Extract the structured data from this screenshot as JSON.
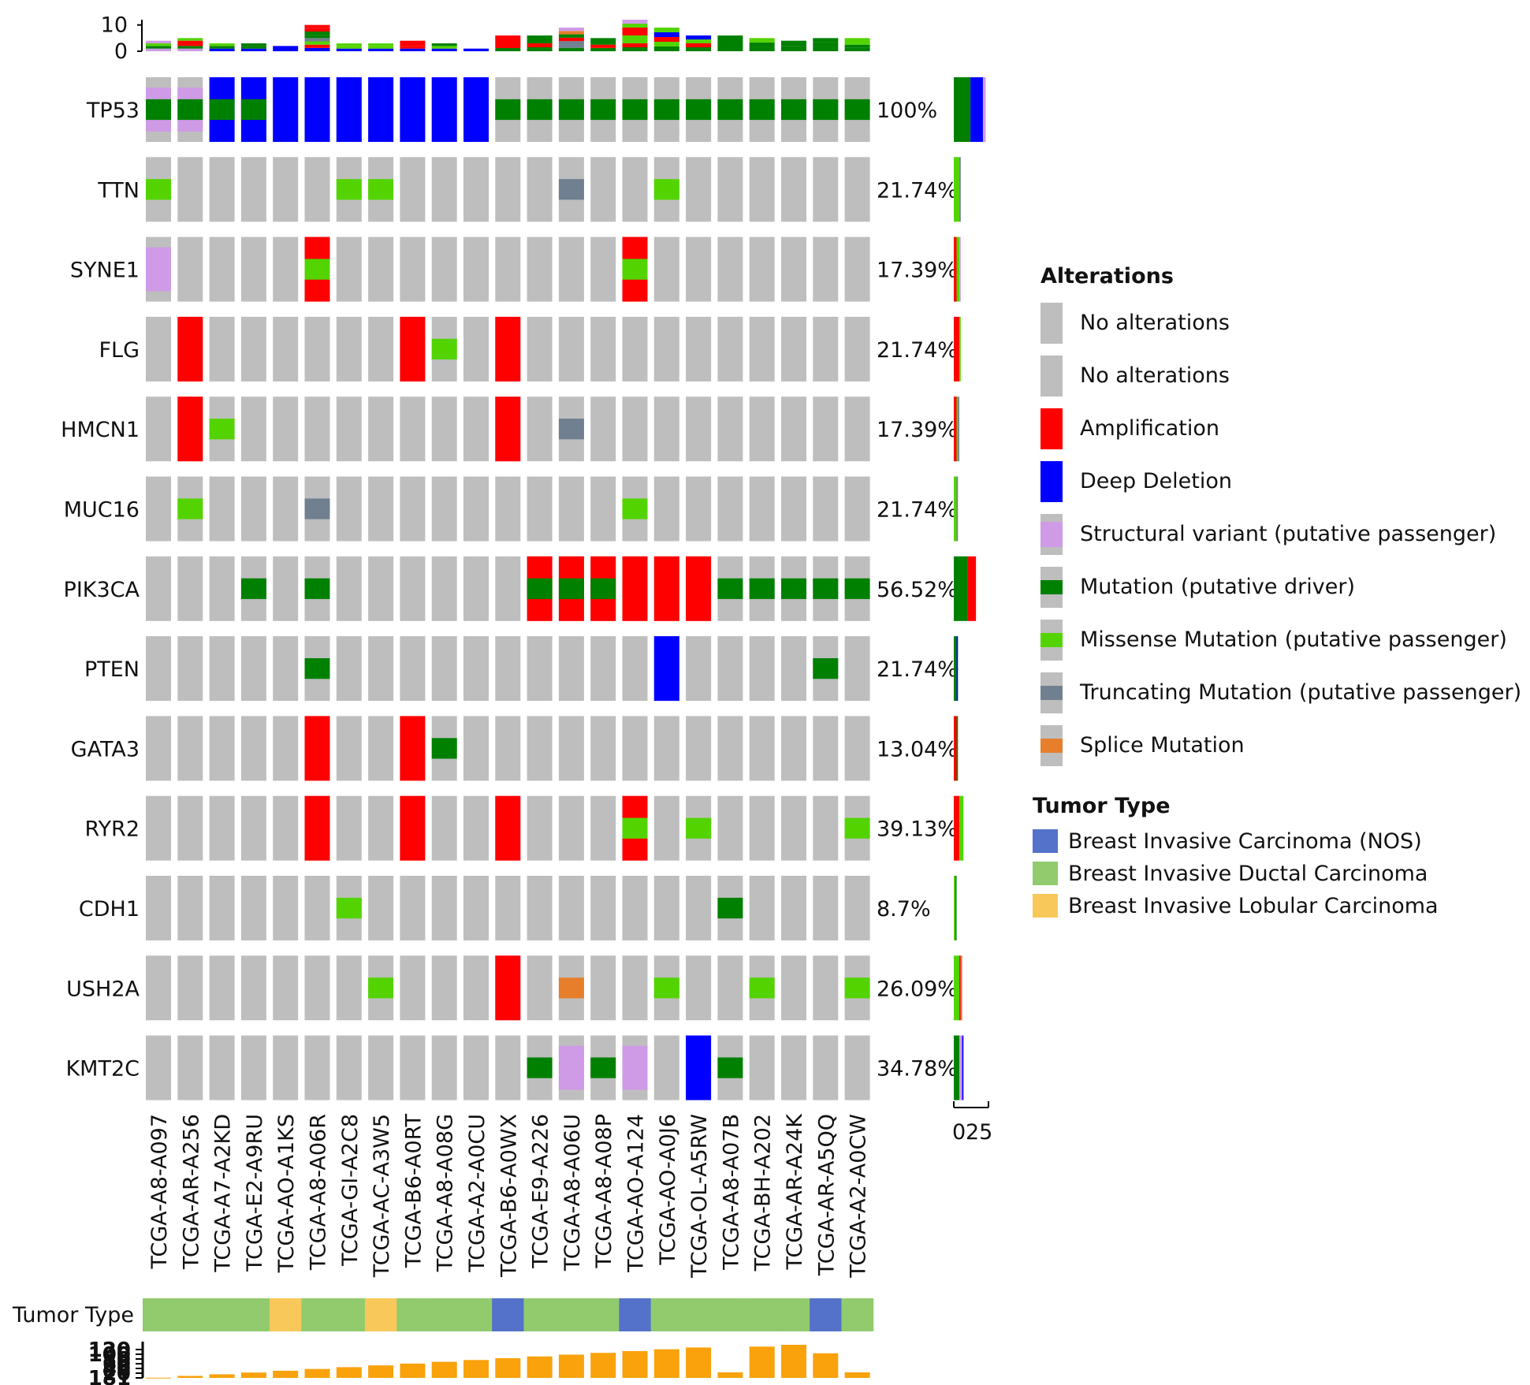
{
  "chart_data": {
    "type": "oncoprint",
    "samples": [
      "TCGA-A8-A097",
      "TCGA-AR-A256",
      "TCGA-A7-A2KD",
      "TCGA-E2-A9RU",
      "TCGA-AO-A1KS",
      "TCGA-A8-A06R",
      "TCGA-GI-A2C8",
      "TCGA-AC-A3W5",
      "TCGA-B6-A0RT",
      "TCGA-A8-A08G",
      "TCGA-A2-A0CU",
      "TCGA-B6-A0WX",
      "TCGA-E9-A226",
      "TCGA-A8-A06U",
      "TCGA-A8-A08P",
      "TCGA-AO-A124",
      "TCGA-AO-A0J6",
      "TCGA-OL-A5RW",
      "TCGA-A8-A07B",
      "TCGA-BH-A202",
      "TCGA-AR-A24K",
      "TCGA-AR-A5QQ",
      "TCGA-A2-A0CW"
    ],
    "genes": [
      "TP53",
      "TTN",
      "SYNE1",
      "FLG",
      "HMCN1",
      "MUC16",
      "PIK3CA",
      "PTEN",
      "GATA3",
      "RYR2",
      "CDH1",
      "USH2A",
      "KMT2C"
    ],
    "percentages": [
      "100%",
      "21.74%",
      "17.39%",
      "21.74%",
      "17.39%",
      "21.74%",
      "56.52%",
      "21.74%",
      "13.04%",
      "39.13%",
      "8.7%",
      "26.09%",
      "34.78%"
    ],
    "alteration_matrix": {
      "TP53": [
        "SV|DRV",
        "SV|DRV",
        "DEL|DRV",
        "DEL|DRV",
        "DEL",
        "DEL",
        "DEL",
        "DEL",
        "DEL",
        "DEL",
        "DEL",
        "DRV",
        "DRV",
        "DRV",
        "DRV",
        "DRV",
        "DRV",
        "DRV",
        "DRV",
        "DRV",
        "DRV",
        "DRV",
        "DRV"
      ],
      "TTN": [
        "MIS",
        "",
        "",
        "",
        "",
        "",
        "MIS",
        "MIS",
        "",
        "",
        "",
        "",
        "",
        "TRU",
        "",
        "",
        "MIS",
        "",
        "",
        "",
        "",
        "",
        ""
      ],
      "SYNE1": [
        "SV",
        "",
        "",
        "",
        "",
        "AMP|MIS",
        "",
        "",
        "",
        "",
        "",
        "",
        "",
        "",
        "",
        "AMP|MIS",
        "",
        "",
        "",
        "",
        "",
        "",
        ""
      ],
      "FLG": [
        "",
        "AMP",
        "",
        "",
        "",
        "",
        "",
        "",
        "AMP",
        "MIS",
        "",
        "AMP",
        "",
        "",
        "",
        "",
        "",
        "",
        "",
        "",
        "",
        "",
        ""
      ],
      "HMCN1": [
        "",
        "AMP",
        "MIS",
        "",
        "",
        "",
        "",
        "",
        "",
        "",
        "",
        "AMP",
        "",
        "TRU",
        "",
        "",
        "",
        "",
        "",
        "",
        "",
        "",
        ""
      ],
      "MUC16": [
        "",
        "MIS",
        "",
        "",
        "",
        "TRU",
        "",
        "",
        "",
        "",
        "",
        "",
        "",
        "",
        "",
        "MIS",
        "",
        "",
        "",
        "",
        "",
        "",
        ""
      ],
      "PIK3CA": [
        "",
        "",
        "",
        "DRV",
        "",
        "DRV",
        "",
        "",
        "",
        "",
        "",
        "",
        "AMP|DRV",
        "AMP|DRV",
        "AMP|DRV",
        "AMP",
        "AMP",
        "AMP",
        "DRV",
        "DRV",
        "DRV",
        "DRV",
        "DRV"
      ],
      "PTEN": [
        "",
        "",
        "",
        "",
        "",
        "DRV",
        "",
        "",
        "",
        "",
        "",
        "",
        "",
        "",
        "",
        "",
        "DEL",
        "",
        "",
        "",
        "",
        "DRV",
        ""
      ],
      "GATA3": [
        "",
        "",
        "",
        "",
        "",
        "AMP",
        "",
        "",
        "AMP",
        "DRV",
        "",
        "",
        "",
        "",
        "",
        "",
        "",
        "",
        "",
        "",
        "",
        "",
        ""
      ],
      "RYR2": [
        "",
        "",
        "",
        "",
        "",
        "AMP",
        "",
        "",
        "AMP",
        "",
        "",
        "AMP",
        "",
        "",
        "",
        "AMP|MIS",
        "",
        "MIS",
        "",
        "",
        "",
        "",
        "MIS"
      ],
      "CDH1": [
        "",
        "",
        "",
        "",
        "",
        "",
        "MIS",
        "",
        "",
        "",
        "",
        "",
        "",
        "",
        "",
        "",
        "",
        "",
        "DRV",
        "",
        "",
        "",
        ""
      ],
      "USH2A": [
        "",
        "",
        "",
        "",
        "",
        "",
        "",
        "MIS",
        "",
        "",
        "",
        "AMP",
        "",
        "SPL",
        "",
        "",
        "MIS",
        "",
        "",
        "MIS",
        "",
        "",
        "MIS"
      ],
      "KMT2C": [
        "",
        "",
        "",
        "",
        "",
        "",
        "",
        "",
        "",
        "",
        "",
        "",
        "DRV",
        "SV",
        "DRV",
        "SV",
        "",
        "DEL",
        "DRV",
        "",
        "",
        "",
        ""
      ]
    },
    "top_bar": {
      "axis_ticks": [
        "10",
        "0"
      ],
      "ylim": [
        0,
        12
      ],
      "values": [
        4,
        5,
        3,
        3,
        2,
        10,
        3,
        3,
        4,
        3,
        1,
        6,
        6,
        9,
        5,
        12,
        9,
        6,
        6,
        5,
        4,
        5,
        5
      ]
    },
    "side_bar": {
      "axis_ticks": [
        "0",
        "25"
      ],
      "xlim": [
        0,
        25
      ],
      "values": {
        "TP53": {
          "DRV": 12,
          "DEL": 9,
          "SV": 2
        },
        "TTN": {
          "MIS": 4,
          "TRU": 1
        },
        "SYNE1": {
          "AMP": 2,
          "MIS": 2,
          "SV": 1
        },
        "FLG": {
          "AMP": 4,
          "MIS": 1
        },
        "HMCN1": {
          "AMP": 2,
          "MIS": 1,
          "TRU": 1
        },
        "MUC16": {
          "MIS": 2,
          "TRU": 1
        },
        "PIK3CA": {
          "DRV": 10,
          "AMP": 6
        },
        "PTEN": {
          "DRV": 2,
          "DEL": 1
        },
        "GATA3": {
          "AMP": 2,
          "DRV": 1
        },
        "RYR2": {
          "AMP": 4,
          "MIS": 3
        },
        "CDH1": {
          "MIS": 1,
          "DRV": 1
        },
        "USH2A": {
          "MIS": 4,
          "AMP": 1,
          "SPL": 1
        },
        "KMT2C": {
          "DRV": 4,
          "SV": 2,
          "DEL": 1
        }
      }
    },
    "tumor_type": {
      "label": "Tumor Type",
      "values": [
        "IDC",
        "IDC",
        "IDC",
        "IDC",
        "ILC",
        "IDC",
        "IDC",
        "ILC",
        "IDC",
        "IDC",
        "IDC",
        "NOS",
        "IDC",
        "IDC",
        "IDC",
        "NOS",
        "IDC",
        "IDC",
        "IDC",
        "IDC",
        "IDC",
        "NOS",
        "IDC"
      ]
    },
    "bottom_bar": {
      "color": "#f9a20c",
      "axis_labels": [
        "120",
        "100",
        "80",
        "60",
        "40",
        "20",
        "181"
      ],
      "values": [
        1,
        9,
        16,
        24,
        32,
        40,
        48,
        56,
        64,
        72,
        80,
        88,
        96,
        104,
        112,
        120,
        128,
        136,
        25,
        140,
        148,
        110,
        25
      ]
    },
    "legend": {
      "alterations_title": "Alterations",
      "alterations": [
        {
          "code": "NONE1",
          "label": "No alterations",
          "color": "#bebebe",
          "style": "none"
        },
        {
          "code": "NONE2",
          "label": "No alterations",
          "color": "#bebebe",
          "style": "none"
        },
        {
          "code": "AMP",
          "label": "Amplification",
          "color": "#ff0000",
          "style": "full"
        },
        {
          "code": "DEL",
          "label": "Deep Deletion",
          "color": "#0000ff",
          "style": "full"
        },
        {
          "code": "SV",
          "label": "Structural variant (putative passenger)",
          "color": "#cf9ae6",
          "style": "sv"
        },
        {
          "code": "DRV",
          "label": "Mutation (putative driver)",
          "color": "#008000",
          "style": "mut"
        },
        {
          "code": "MIS",
          "label": "Missense Mutation (putative passenger)",
          "color": "#53d400",
          "style": "mut"
        },
        {
          "code": "TRU",
          "label": "Truncating Mutation (putative passenger)",
          "color": "#708090",
          "style": "mut"
        },
        {
          "code": "SPL",
          "label": "Splice Mutation",
          "color": "#e67e2b",
          "style": "mut"
        }
      ],
      "tumor_title": "Tumor Type",
      "tumor_types": [
        {
          "code": "NOS",
          "label": "Breast Invasive Carcinoma (NOS)",
          "color": "#5472c9"
        },
        {
          "code": "IDC",
          "label": "Breast Invasive Ductal Carcinoma",
          "color": "#91cb6d"
        },
        {
          "code": "ILC",
          "label": "Breast Invasive Lobular Carcinoma",
          "color": "#f9c85a"
        }
      ]
    },
    "no_alteration_color": "#bebebe"
  }
}
